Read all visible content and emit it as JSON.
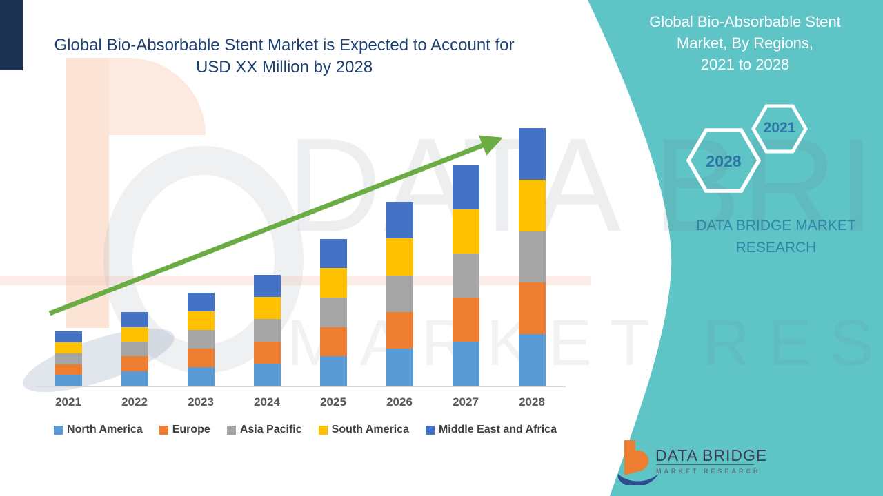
{
  "header": {
    "title_line1": "Global Bio-Absorbable Stent Market is Expected to Account for",
    "title_line2": "USD XX Million by 2028"
  },
  "chart_data": {
    "type": "bar",
    "stacked": true,
    "title": "Global Bio-Absorbable Stent Market is Expected to Account for USD XX Million by 2028",
    "categories": [
      "2021",
      "2022",
      "2023",
      "2024",
      "2025",
      "2026",
      "2027",
      "2028"
    ],
    "series": [
      {
        "name": "North America",
        "color": "#5B9BD5",
        "values": [
          4.2,
          5.7,
          7.2,
          8.6,
          11.4,
          14.3,
          17.1,
          20.0
        ]
      },
      {
        "name": "Europe",
        "color": "#ED7D31",
        "values": [
          4.2,
          5.7,
          7.2,
          8.6,
          11.4,
          14.3,
          17.1,
          20.0
        ]
      },
      {
        "name": "Asia Pacific",
        "color": "#A5A5A5",
        "values": [
          4.2,
          5.7,
          7.2,
          8.6,
          11.4,
          14.3,
          17.1,
          20.0
        ]
      },
      {
        "name": "South America",
        "color": "#FFC000",
        "values": [
          4.2,
          5.7,
          7.2,
          8.6,
          11.4,
          14.3,
          17.1,
          20.0
        ]
      },
      {
        "name": "Middle East and Africa",
        "color": "#4472C4",
        "values": [
          4.2,
          5.7,
          7.2,
          8.6,
          11.4,
          14.3,
          17.1,
          20.0
        ]
      }
    ],
    "totals": [
      21.0,
      28.5,
      36.0,
      43.0,
      57.0,
      71.5,
      85.5,
      100.0
    ],
    "ylim": [
      0,
      105
    ],
    "y_axis_visible": false,
    "grid": false,
    "legend_position": "bottom",
    "trend_arrow": true,
    "arrow_color": "#6CAC44"
  },
  "side_panel": {
    "bg_color": "#5EC4C6",
    "title_line1": "Global Bio-Absorbable Stent",
    "title_line2": "Market, By Regions,",
    "title_line3": "2021 to 2028",
    "hexagons": [
      {
        "label": "2021"
      },
      {
        "label": "2028"
      }
    ],
    "brand_line1": "DATA BRIDGE MARKET",
    "brand_line2": "RESEARCH"
  },
  "footer_logo": {
    "name": "DATA BRIDGE",
    "tagline": "MARKET RESEARCH"
  },
  "watermark": {
    "big_text": "DATA BRIDGE",
    "small_text": "MARKET RESEARCH"
  }
}
